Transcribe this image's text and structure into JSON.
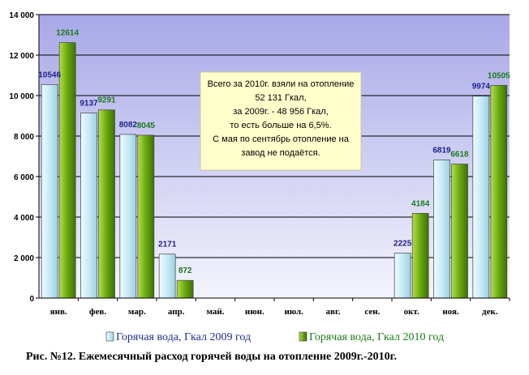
{
  "chart_data": {
    "type": "bar",
    "categories": [
      "янв.",
      "фев.",
      "мар.",
      "апр.",
      "май.",
      "июн.",
      "июл.",
      "авг.",
      "сен.",
      "окт.",
      "ноя.",
      "дек."
    ],
    "series": [
      {
        "name": "Горячая вода, Гкал 2009 год",
        "values": [
          10546,
          9137,
          8082,
          2171,
          null,
          null,
          null,
          null,
          null,
          2225,
          6819,
          9974
        ],
        "color": "#d4f0f7"
      },
      {
        "name": "Горячая вода, Гкал 2010 год",
        "values": [
          12614,
          9291,
          8045,
          872,
          null,
          null,
          null,
          null,
          null,
          4184,
          6618,
          10505
        ],
        "color": "#6aa80f"
      }
    ],
    "yticks": [
      "0",
      "2 000",
      "4 000",
      "6 000",
      "8 000",
      "10 000",
      "12 000",
      "14 000"
    ],
    "ylim": [
      0,
      14000
    ],
    "grid": true,
    "legend": "bottom",
    "annotation": [
      "Всего за 2010г. взяли на отопление",
      "52 131 Гкал,",
      "за 2009г. - 48 956 Гкал,",
      "то есть больше на 6,5%.",
      "С мая по сентябрь отопление на",
      "завод не подаётся."
    ],
    "colors": {
      "plot_top": "#a8a8e8",
      "plot_bottom": "#f2f2fc",
      "note_bg": "#ffffcc",
      "grid": "#000000"
    }
  },
  "caption": "Рис. №12. Ежемесячный расход горячей воды на отопление 2009г.-2010г."
}
